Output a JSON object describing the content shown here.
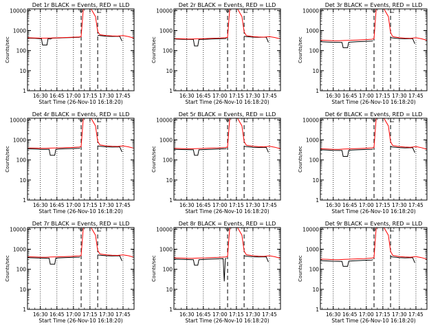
{
  "figure": {
    "x_title": "Start Time (26-Nov-10 16:18:20)",
    "y_title": "Counts/sec",
    "x_ticks": [
      "16:30",
      "16:45",
      "17:00",
      "17:15",
      "17:30",
      "17:45"
    ],
    "y_ticks": [
      "1",
      "10",
      "100",
      "1000",
      "10000"
    ]
  },
  "colors": {
    "events": "#000000",
    "lld": "#ff0000",
    "background": "#ffffff"
  },
  "chart_data": [
    {
      "type": "line",
      "title": "Det 1r BLACK = Events, RED = LLD",
      "x_unit": "minutes after 16:00",
      "xlim": [
        18.33,
        115
      ],
      "ylim": [
        1,
        12000
      ],
      "log_y": true,
      "grid": "vertical dotted",
      "marker_lines": [
        67,
        82
      ],
      "series": [
        {
          "name": "Events",
          "color": "#000000",
          "x": [
            18.33,
            25,
            31,
            32,
            36,
            37,
            39,
            41,
            47,
            52,
            58,
            65,
            66
          ],
          "y": [
            420,
            410,
            390,
            190,
            190,
            400,
            380,
            420,
            430,
            440,
            450,
            460,
            470
          ]
        },
        {
          "name": "Events",
          "color": "#000000",
          "x": [
            82,
            84,
            90,
            95,
            102,
            104
          ],
          "y": [
            580,
            560,
            520,
            510,
            520,
            300
          ]
        },
        {
          "name": "LLD",
          "color": "#ff0000",
          "x": [
            18.33,
            25,
            31,
            35,
            40,
            47,
            52,
            58,
            65,
            67,
            69,
            73,
            76,
            80,
            82,
            84,
            90,
            95,
            100,
            105,
            110,
            115
          ],
          "y": [
            440,
            430,
            420,
            420,
            430,
            440,
            450,
            460,
            480,
            500,
            12000,
            12000,
            12000,
            5000,
            900,
            620,
            560,
            540,
            530,
            560,
            500,
            420
          ]
        }
      ]
    },
    {
      "type": "line",
      "title": "Det 2r BLACK = Events, RED = LLD",
      "x_unit": "minutes after 16:00",
      "xlim": [
        18.33,
        115
      ],
      "ylim": [
        1,
        12000
      ],
      "log_y": true,
      "grid": "vertical dotted",
      "marker_lines": [
        67,
        82
      ],
      "series": [
        {
          "name": "Events",
          "color": "#000000",
          "x": [
            18.33,
            25,
            36,
            37,
            40,
            41,
            47,
            52,
            58,
            65,
            66
          ],
          "y": [
            380,
            370,
            360,
            170,
            170,
            360,
            370,
            380,
            390,
            400,
            410
          ]
        },
        {
          "name": "Events",
          "color": "#000000",
          "x": [
            82,
            84,
            90,
            95,
            102,
            104
          ],
          "y": [
            520,
            500,
            470,
            460,
            470,
            260
          ]
        },
        {
          "name": "LLD",
          "color": "#ff0000",
          "x": [
            18.33,
            25,
            31,
            35,
            40,
            47,
            52,
            58,
            65,
            67,
            69,
            73,
            76,
            80,
            82,
            84,
            90,
            95,
            100,
            105,
            110,
            115
          ],
          "y": [
            400,
            390,
            380,
            380,
            390,
            400,
            410,
            420,
            440,
            460,
            12000,
            12000,
            12000,
            5000,
            850,
            560,
            500,
            480,
            470,
            500,
            450,
            380
          ]
        }
      ]
    },
    {
      "type": "line",
      "title": "Det 3r BLACK = Events, RED = LLD",
      "x_unit": "minutes after 16:00",
      "xlim": [
        18.33,
        115
      ],
      "ylim": [
        1,
        12000
      ],
      "log_y": true,
      "grid": "vertical dotted",
      "marker_lines": [
        67,
        82
      ],
      "series": [
        {
          "name": "Events",
          "color": "#000000",
          "x": [
            18.33,
            24,
            30,
            38,
            39,
            43,
            44,
            47,
            52,
            58,
            65,
            66
          ],
          "y": [
            280,
            270,
            260,
            255,
            140,
            140,
            260,
            270,
            280,
            290,
            300,
            310
          ]
        },
        {
          "name": "Events",
          "color": "#000000",
          "x": [
            82,
            84,
            90,
            95,
            102,
            104
          ],
          "y": [
            450,
            430,
            400,
            390,
            400,
            220
          ]
        },
        {
          "name": "LLD",
          "color": "#ff0000",
          "x": [
            18.33,
            25,
            31,
            35,
            40,
            47,
            52,
            58,
            65,
            67,
            69,
            73,
            76,
            80,
            82,
            84,
            90,
            95,
            100,
            105,
            110,
            115
          ],
          "y": [
            330,
            320,
            310,
            310,
            320,
            330,
            340,
            350,
            370,
            390,
            12000,
            12000,
            12000,
            5000,
            800,
            500,
            440,
            420,
            410,
            440,
            390,
            330
          ]
        }
      ]
    },
    {
      "type": "line",
      "title": "Det 4r BLACK = Events, RED = LLD",
      "x_unit": "minutes after 16:00",
      "xlim": [
        18.33,
        115
      ],
      "ylim": [
        1,
        12000
      ],
      "log_y": true,
      "grid": "vertical dotted",
      "marker_lines": [
        67,
        82
      ],
      "series": [
        {
          "name": "Events",
          "color": "#000000",
          "x": [
            18.33,
            25,
            31,
            38,
            39,
            43,
            44,
            47,
            52,
            58,
            65,
            66
          ],
          "y": [
            360,
            350,
            340,
            335,
            170,
            170,
            340,
            350,
            360,
            370,
            380,
            390
          ]
        },
        {
          "name": "Events",
          "color": "#000000",
          "x": [
            82,
            84,
            90,
            95,
            102,
            104
          ],
          "y": [
            500,
            480,
            450,
            440,
            450,
            250
          ]
        },
        {
          "name": "LLD",
          "color": "#ff0000",
          "x": [
            18.33,
            25,
            31,
            35,
            40,
            47,
            52,
            58,
            65,
            67,
            69,
            73,
            76,
            80,
            82,
            84,
            90,
            95,
            100,
            105,
            110,
            115
          ],
          "y": [
            400,
            390,
            380,
            380,
            390,
            400,
            410,
            420,
            440,
            460,
            12000,
            12000,
            12000,
            5000,
            850,
            560,
            500,
            480,
            470,
            500,
            450,
            380
          ]
        }
      ]
    },
    {
      "type": "line",
      "title": "Det 5r BLACK = Events, RED = LLD",
      "x_unit": "minutes after 16:00",
      "xlim": [
        18.33,
        115
      ],
      "ylim": [
        1,
        12000
      ],
      "log_y": true,
      "grid": "vertical dotted",
      "marker_lines": [
        67,
        82
      ],
      "series": [
        {
          "name": "Events",
          "color": "#000000",
          "x": [
            18.33,
            25,
            36,
            37,
            40,
            41,
            47,
            52,
            58,
            65,
            66
          ],
          "y": [
            340,
            330,
            320,
            170,
            170,
            320,
            330,
            340,
            350,
            360,
            370
          ]
        },
        {
          "name": "Events",
          "color": "#000000",
          "x": [
            82,
            84,
            90,
            95,
            102,
            104
          ],
          "y": [
            480,
            460,
            430,
            420,
            430,
            240
          ]
        },
        {
          "name": "LLD",
          "color": "#ff0000",
          "x": [
            18.33,
            25,
            31,
            35,
            40,
            47,
            52,
            58,
            65,
            67,
            69,
            73,
            76,
            80,
            82,
            84,
            90,
            95,
            100,
            105,
            110,
            115
          ],
          "y": [
            380,
            370,
            360,
            360,
            370,
            380,
            390,
            400,
            420,
            440,
            12000,
            12000,
            12000,
            5000,
            820,
            540,
            480,
            460,
            450,
            480,
            430,
            360
          ]
        }
      ]
    },
    {
      "type": "line",
      "title": "Det 6r BLACK = Events, RED = LLD",
      "x_unit": "minutes after 16:00",
      "xlim": [
        18.33,
        115
      ],
      "ylim": [
        1,
        12000
      ],
      "log_y": true,
      "grid": "vertical dotted",
      "marker_lines": [
        67,
        82
      ],
      "series": [
        {
          "name": "Events",
          "color": "#000000",
          "x": [
            18.33,
            24,
            30,
            38,
            39,
            43,
            44,
            47,
            52,
            58,
            65,
            66
          ],
          "y": [
            320,
            310,
            300,
            295,
            150,
            150,
            300,
            310,
            320,
            330,
            340,
            350
          ]
        },
        {
          "name": "Events",
          "color": "#000000",
          "x": [
            82,
            84,
            90,
            95,
            102,
            104
          ],
          "y": [
            460,
            440,
            410,
            400,
            410,
            230
          ]
        },
        {
          "name": "LLD",
          "color": "#ff0000",
          "x": [
            18.33,
            25,
            31,
            35,
            40,
            47,
            52,
            58,
            65,
            67,
            69,
            73,
            76,
            80,
            82,
            84,
            90,
            95,
            100,
            105,
            110,
            115
          ],
          "y": [
            360,
            350,
            340,
            340,
            350,
            360,
            370,
            380,
            400,
            420,
            12000,
            12000,
            12000,
            5000,
            800,
            520,
            460,
            440,
            430,
            460,
            410,
            340
          ]
        }
      ]
    },
    {
      "type": "line",
      "title": "Det 7r BLACK = Events, RED = LLD",
      "x_unit": "minutes after 16:00",
      "xlim": [
        18.33,
        115
      ],
      "ylim": [
        1,
        12000
      ],
      "log_y": true,
      "grid": "vertical dotted",
      "marker_lines": [
        67,
        82
      ],
      "series": [
        {
          "name": "Events",
          "color": "#000000",
          "x": [
            18.33,
            25,
            31,
            38,
            39,
            43,
            44,
            47,
            52,
            58,
            65,
            66
          ],
          "y": [
            380,
            370,
            360,
            355,
            180,
            180,
            360,
            370,
            380,
            390,
            400,
            410
          ]
        },
        {
          "name": "Events",
          "color": "#000000",
          "x": [
            82,
            84,
            90,
            95,
            102,
            104
          ],
          "y": [
            520,
            500,
            470,
            460,
            470,
            260
          ]
        },
        {
          "name": "LLD",
          "color": "#ff0000",
          "x": [
            18.33,
            25,
            31,
            35,
            40,
            47,
            52,
            58,
            65,
            67,
            69,
            73,
            76,
            80,
            82,
            84,
            90,
            95,
            100,
            105,
            110,
            115
          ],
          "y": [
            420,
            410,
            400,
            400,
            410,
            420,
            430,
            440,
            460,
            480,
            12000,
            12000,
            12000,
            5000,
            870,
            580,
            520,
            500,
            490,
            520,
            470,
            400
          ]
        }
      ]
    },
    {
      "type": "line",
      "title": "Det 8r BLACK = Events, RED = LLD",
      "x_unit": "minutes after 16:00",
      "xlim": [
        18.33,
        115
      ],
      "ylim": [
        1,
        12000
      ],
      "log_y": true,
      "grid": "vertical dotted",
      "marker_lines": [
        67,
        82
      ],
      "series": [
        {
          "name": "Events",
          "color": "#000000",
          "x": [
            18.33,
            25,
            36,
            37,
            40,
            41,
            47,
            52,
            58,
            63,
            64,
            65,
            66
          ],
          "y": [
            320,
            310,
            300,
            160,
            160,
            300,
            310,
            320,
            330,
            340,
            25,
            340,
            350
          ]
        },
        {
          "name": "Events",
          "color": "#000000",
          "x": [
            82,
            84,
            90,
            95,
            102,
            104
          ],
          "y": [
            470,
            450,
            420,
            410,
            420,
            230
          ]
        },
        {
          "name": "LLD",
          "color": "#ff0000",
          "x": [
            18.33,
            25,
            31,
            35,
            40,
            47,
            52,
            58,
            65,
            67,
            69,
            73,
            76,
            80,
            82,
            84,
            90,
            95,
            100,
            105,
            110,
            115
          ],
          "y": [
            370,
            360,
            350,
            350,
            360,
            370,
            380,
            390,
            410,
            430,
            12000,
            12000,
            12000,
            5000,
            810,
            530,
            470,
            450,
            440,
            470,
            420,
            350
          ]
        }
      ]
    },
    {
      "type": "line",
      "title": "Det 9r BLACK = Events, RED = LLD",
      "x_unit": "minutes after 16:00",
      "xlim": [
        18.33,
        115
      ],
      "ylim": [
        1,
        12000
      ],
      "log_y": true,
      "grid": "vertical dotted",
      "marker_lines": [
        67,
        82
      ],
      "series": [
        {
          "name": "Events",
          "color": "#000000",
          "x": [
            18.33,
            24,
            30,
            38,
            39,
            43,
            44,
            47,
            52,
            58,
            65,
            66
          ],
          "y": [
            270,
            260,
            250,
            245,
            140,
            140,
            250,
            260,
            270,
            280,
            290,
            300
          ]
        },
        {
          "name": "Events",
          "color": "#000000",
          "x": [
            82,
            84,
            90,
            95,
            102,
            104
          ],
          "y": [
            430,
            410,
            380,
            370,
            380,
            210
          ]
        },
        {
          "name": "LLD",
          "color": "#ff0000",
          "x": [
            18.33,
            25,
            31,
            35,
            40,
            47,
            52,
            58,
            65,
            67,
            69,
            73,
            76,
            80,
            82,
            84,
            90,
            95,
            100,
            105,
            110,
            115
          ],
          "y": [
            320,
            310,
            300,
            300,
            310,
            320,
            330,
            340,
            360,
            380,
            12000,
            12000,
            12000,
            5000,
            780,
            490,
            430,
            410,
            400,
            430,
            380,
            320
          ]
        }
      ]
    }
  ]
}
